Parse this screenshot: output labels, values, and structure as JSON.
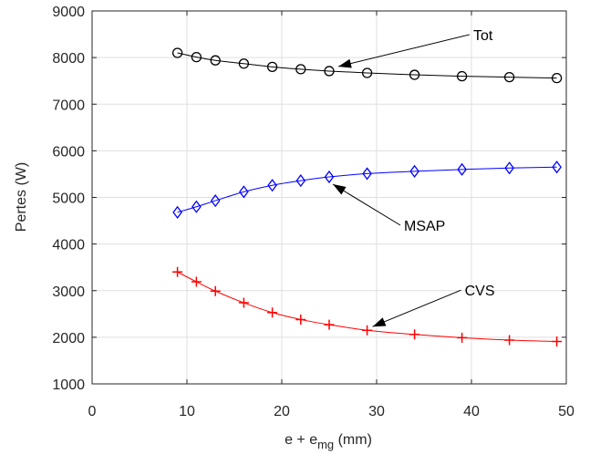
{
  "chart_data": {
    "type": "line",
    "xlabel": "e + e",
    "xlabel_sub": "mg",
    "xlabel_unit": " (mm)",
    "ylabel": "Pertes (W)",
    "xlim": [
      0,
      50
    ],
    "ylim": [
      1000,
      9000
    ],
    "xticks": [
      "0",
      "10",
      "20",
      "30",
      "40",
      "50"
    ],
    "yticks": [
      "1000",
      "2000",
      "3000",
      "4000",
      "5000",
      "6000",
      "7000",
      "8000",
      "9000"
    ],
    "grid": true,
    "x": [
      9,
      11,
      13,
      16,
      19,
      22,
      25,
      29,
      34,
      39,
      44,
      49
    ],
    "series": [
      {
        "name": "Tot",
        "color": "#000000",
        "marker": "circle",
        "values": [
          8100,
          8010,
          7940,
          7870,
          7800,
          7750,
          7710,
          7670,
          7630,
          7600,
          7580,
          7560
        ]
      },
      {
        "name": "MSAP",
        "color": "#0000ff",
        "marker": "diamond",
        "values": [
          4680,
          4800,
          4930,
          5120,
          5260,
          5360,
          5440,
          5510,
          5560,
          5600,
          5630,
          5650
        ]
      },
      {
        "name": "CVS",
        "color": "#ff0000",
        "marker": "plus",
        "values": [
          3400,
          3190,
          2990,
          2740,
          2530,
          2380,
          2270,
          2150,
          2060,
          1990,
          1940,
          1910
        ]
      }
    ],
    "annotations": [
      {
        "text": "Tot",
        "series": 0,
        "point_index": 6
      },
      {
        "text": "MSAP",
        "series": 1,
        "point_index": 6
      },
      {
        "text": "CVS",
        "series": 2,
        "point_index": 7
      }
    ]
  }
}
